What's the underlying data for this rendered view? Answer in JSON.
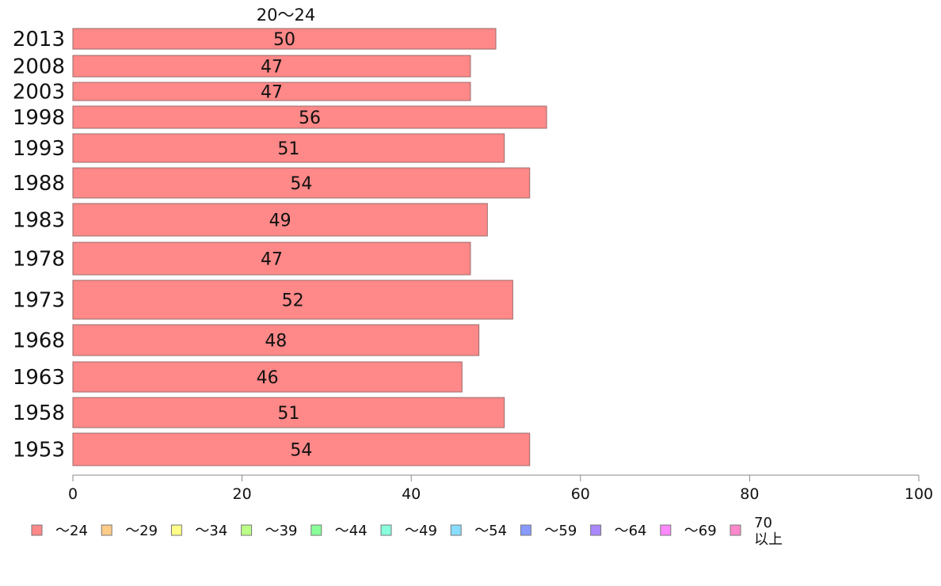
{
  "chart_data": {
    "type": "bar",
    "orientation": "horizontal",
    "title": "20〜24",
    "categories": [
      "2013",
      "2008",
      "2003",
      "1998",
      "1993",
      "1988",
      "1983",
      "1978",
      "1973",
      "1968",
      "1963",
      "1958",
      "1953"
    ],
    "series": [
      {
        "name": "〜24",
        "values": [
          50,
          47,
          47,
          56,
          51,
          54,
          49,
          47,
          52,
          48,
          46,
          51,
          54
        ]
      }
    ],
    "data_labels": [
      "50",
      "47",
      "47",
      "56",
      "51",
      "54",
      "49",
      "47",
      "52",
      "48",
      "46",
      "51",
      "54"
    ],
    "xlim": [
      0,
      100
    ],
    "xticks": [
      "0",
      "20",
      "40",
      "60",
      "80",
      "100"
    ],
    "grid": false,
    "legend": {
      "placement": "bottom",
      "entries": [
        {
          "label": "〜24",
          "color": "#ff8888"
        },
        {
          "label": "〜29",
          "color": "#ffcc88"
        },
        {
          "label": "〜34",
          "color": "#ffff88"
        },
        {
          "label": "〜39",
          "color": "#bbff88"
        },
        {
          "label": "〜44",
          "color": "#88ff99"
        },
        {
          "label": "〜49",
          "color": "#88ffdd"
        },
        {
          "label": "〜54",
          "color": "#88ddff"
        },
        {
          "label": "〜59",
          "color": "#8899ff"
        },
        {
          "label": "〜64",
          "color": "#aa88ff"
        },
        {
          "label": "〜69",
          "color": "#ff88ff"
        },
        {
          "label": "70\n以上",
          "color": "#ff88cc"
        }
      ]
    },
    "bar_color": "#ff8888"
  }
}
